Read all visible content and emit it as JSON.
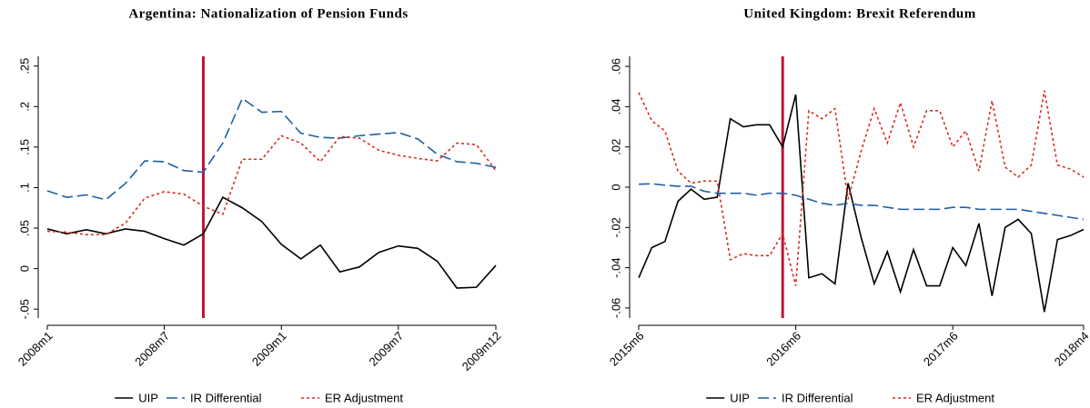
{
  "chart_data": [
    {
      "type": "line",
      "title": "Argentina: Nationalization of Pension Funds",
      "categories": [
        "2008m1",
        null,
        null,
        null,
        null,
        null,
        "2008m7",
        null,
        null,
        null,
        null,
        null,
        "2009m1",
        null,
        null,
        null,
        null,
        null,
        "2009m7",
        null,
        null,
        null,
        null,
        "2009m12"
      ],
      "series": [
        {
          "name": "UIP",
          "color": "#000000",
          "style": "solid",
          "values": [
            0.049,
            0.043,
            0.048,
            0.043,
            0.049,
            0.046,
            0.037,
            0.029,
            0.043,
            0.088,
            0.075,
            0.058,
            0.03,
            0.012,
            0.029,
            -0.004,
            0.002,
            0.02,
            0.028,
            0.025,
            0.009,
            -0.024,
            -0.023,
            0.004
          ]
        },
        {
          "name": "IR Differential",
          "color": "#1f5fa6",
          "style": "dashed",
          "values": [
            0.096,
            0.088,
            0.091,
            0.085,
            0.105,
            0.133,
            0.132,
            0.121,
            0.119,
            0.155,
            0.21,
            0.193,
            0.194,
            0.167,
            0.162,
            0.161,
            0.164,
            0.166,
            0.168,
            0.16,
            0.141,
            0.132,
            0.13,
            0.125
          ]
        },
        {
          "name": "ER Adjustment",
          "color": "#d62d20",
          "style": "dotted",
          "values": [
            0.046,
            0.045,
            0.042,
            0.042,
            0.056,
            0.087,
            0.095,
            0.092,
            0.077,
            0.067,
            0.135,
            0.135,
            0.164,
            0.155,
            0.132,
            0.163,
            0.161,
            0.146,
            0.14,
            0.136,
            0.133,
            0.155,
            0.153,
            0.121
          ]
        }
      ],
      "event_index": 8,
      "event_color": "#c0143c",
      "ylim": [
        -0.061,
        0.262
      ],
      "yticks": [
        {
          "value": -0.05,
          "label": "-.05"
        },
        0,
        {
          "value": 0.05,
          "label": ".05"
        },
        {
          "value": 0.1,
          "label": ".1"
        },
        {
          "value": 0.15,
          "label": ".15"
        },
        {
          "value": 0.2,
          "label": ".2"
        },
        {
          "value": 0.25,
          "label": ".25"
        }
      ]
    },
    {
      "type": "line",
      "title": "United Kingdom: Brexit Referendum",
      "categories": [
        "2015m6",
        null,
        null,
        null,
        null,
        null,
        null,
        null,
        null,
        null,
        null,
        null,
        "2016m6",
        null,
        null,
        null,
        null,
        null,
        null,
        null,
        null,
        null,
        null,
        null,
        "2017m6",
        null,
        null,
        null,
        null,
        null,
        null,
        null,
        null,
        null,
        "2018m4"
      ],
      "series": [
        {
          "name": "UIP",
          "color": "#000000",
          "style": "solid",
          "values": [
            -0.045,
            -0.03,
            -0.027,
            -0.007,
            -0.001,
            -0.006,
            -0.005,
            0.034,
            0.03,
            0.031,
            0.031,
            0.02,
            0.046,
            -0.045,
            -0.043,
            -0.048,
            0.002,
            -0.025,
            -0.048,
            -0.032,
            -0.052,
            -0.031,
            -0.049,
            -0.049,
            -0.03,
            -0.039,
            -0.018,
            -0.054,
            -0.02,
            -0.016,
            -0.023,
            -0.062,
            -0.026,
            -0.024,
            -0.021
          ]
        },
        {
          "name": "IR Differential",
          "color": "#1f5fa6",
          "style": "dashed",
          "values": [
            0.0015,
            0.0017,
            0.001,
            0.0005,
            0.0005,
            -0.002,
            -0.003,
            -0.003,
            -0.003,
            -0.004,
            -0.003,
            -0.003,
            -0.004,
            -0.006,
            -0.008,
            -0.009,
            -0.008,
            -0.009,
            -0.009,
            -0.01,
            -0.011,
            -0.011,
            -0.011,
            -0.011,
            -0.01,
            -0.01,
            -0.011,
            -0.011,
            -0.011,
            -0.011,
            -0.012,
            -0.013,
            -0.014,
            -0.015,
            -0.016
          ]
        },
        {
          "name": "ER Adjustment",
          "color": "#d62d20",
          "style": "dotted",
          "values": [
            0.047,
            0.033,
            0.028,
            0.008,
            0.002,
            0.003,
            0.003,
            -0.036,
            -0.033,
            -0.034,
            -0.034,
            -0.023,
            -0.049,
            0.038,
            0.034,
            0.039,
            -0.006,
            0.018,
            0.039,
            0.022,
            0.042,
            0.02,
            0.038,
            0.038,
            0.02,
            0.028,
            0.008,
            0.043,
            0.01,
            0.005,
            0.011,
            0.048,
            0.011,
            0.009,
            0.005
          ]
        }
      ],
      "event_index": 11,
      "event_color": "#c0143c",
      "ylim": [
        -0.065,
        0.065
      ],
      "yticks": [
        {
          "value": -0.06,
          "label": "-.06"
        },
        {
          "value": -0.04,
          "label": "-.04"
        },
        {
          "value": -0.02,
          "label": "-.02"
        },
        0,
        {
          "value": 0.02,
          "label": ".02"
        },
        {
          "value": 0.04,
          "label": ".04"
        },
        {
          "value": 0.06,
          "label": ".06"
        }
      ]
    }
  ]
}
